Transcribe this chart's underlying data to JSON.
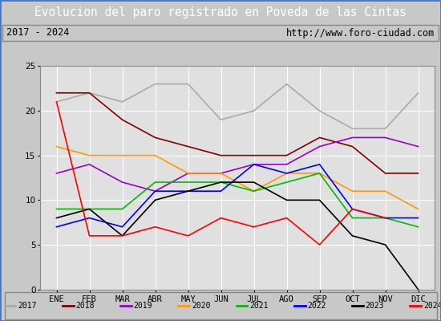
{
  "title": "Evolucion del paro registrado en Poveda de las Cintas",
  "subtitle_left": "2017 - 2024",
  "subtitle_right": "http://www.foro-ciudad.com",
  "months": [
    "ENE",
    "FEB",
    "MAR",
    "ABR",
    "MAY",
    "JUN",
    "JUL",
    "AGO",
    "SEP",
    "OCT",
    "NOV",
    "DIC"
  ],
  "series": {
    "2017": {
      "color": "#aaaaaa",
      "data": [
        21,
        22,
        21,
        23,
        23,
        19,
        20,
        23,
        20,
        18,
        18,
        22
      ]
    },
    "2018": {
      "color": "#800000",
      "data": [
        22,
        22,
        19,
        17,
        16,
        15,
        15,
        15,
        17,
        16,
        13,
        13
      ]
    },
    "2019": {
      "color": "#9900cc",
      "data": [
        13,
        14,
        12,
        11,
        13,
        13,
        14,
        14,
        16,
        17,
        17,
        16
      ]
    },
    "2020": {
      "color": "#ff9900",
      "data": [
        16,
        15,
        15,
        15,
        13,
        13,
        11,
        13,
        13,
        11,
        11,
        9
      ]
    },
    "2021": {
      "color": "#00bb00",
      "data": [
        9,
        9,
        9,
        12,
        12,
        12,
        11,
        12,
        13,
        8,
        8,
        7
      ]
    },
    "2022": {
      "color": "#0000ff",
      "data": [
        7,
        8,
        7,
        11,
        11,
        11,
        14,
        13,
        14,
        9,
        8,
        8
      ]
    },
    "2023": {
      "color": "#000000",
      "data": [
        8,
        9,
        6,
        10,
        11,
        12,
        12,
        10,
        10,
        6,
        5,
        0
      ]
    },
    "2024": {
      "color": "#ff0000",
      "data": [
        21,
        6,
        6,
        7,
        6,
        8,
        7,
        8,
        5,
        9,
        8,
        null
      ]
    }
  },
  "ylim": [
    0,
    25
  ],
  "yticks": [
    0,
    5,
    10,
    15,
    20,
    25
  ],
  "bg_color": "#c8c8c8",
  "plot_bg_color": "#e0e0e0",
  "title_bg_color": "#4477cc",
  "title_text_color": "#ffffff",
  "subtitle_bg_color": "#f0f0f0",
  "subtitle_text_color": "#000000",
  "grid_color": "#ffffff",
  "legend_bg_color": "#f0f0f0"
}
